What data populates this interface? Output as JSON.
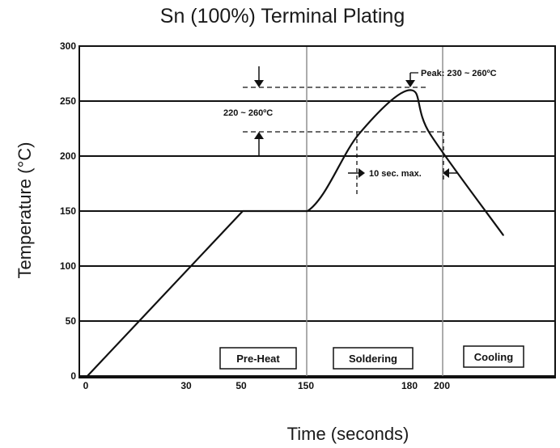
{
  "chart_data": {
    "type": "line",
    "title": "Sn (100%) Terminal Plating",
    "xlabel": "Time (seconds)",
    "ylabel": "Temperature (°C)",
    "y_ticks": [
      "0",
      "50",
      "100",
      "150",
      "200",
      "250",
      "300"
    ],
    "x_ticks": [
      "0",
      "30",
      "50",
      "150",
      "180",
      "200"
    ],
    "ylim": [
      0,
      300
    ],
    "grid": "horizontal",
    "line_color": "#111111",
    "series": [
      {
        "points": [
          {
            "x": 0,
            "y": 0
          },
          {
            "x": 50,
            "y": 150
          },
          {
            "x": 150,
            "y": 150
          },
          {
            "x": 165,
            "y": 220
          },
          {
            "x": 180,
            "y": 260
          },
          {
            "x": 192,
            "y": 220
          },
          {
            "x": 215,
            "y": 128
          }
        ]
      }
    ],
    "annotations": {
      "peak": "Peak:  230 ~ 260ºC",
      "range": "220 ~ 260ºC",
      "duration": "10 sec. max."
    },
    "phases": [
      "Pre-Heat",
      "Soldering",
      "Cooling"
    ]
  }
}
